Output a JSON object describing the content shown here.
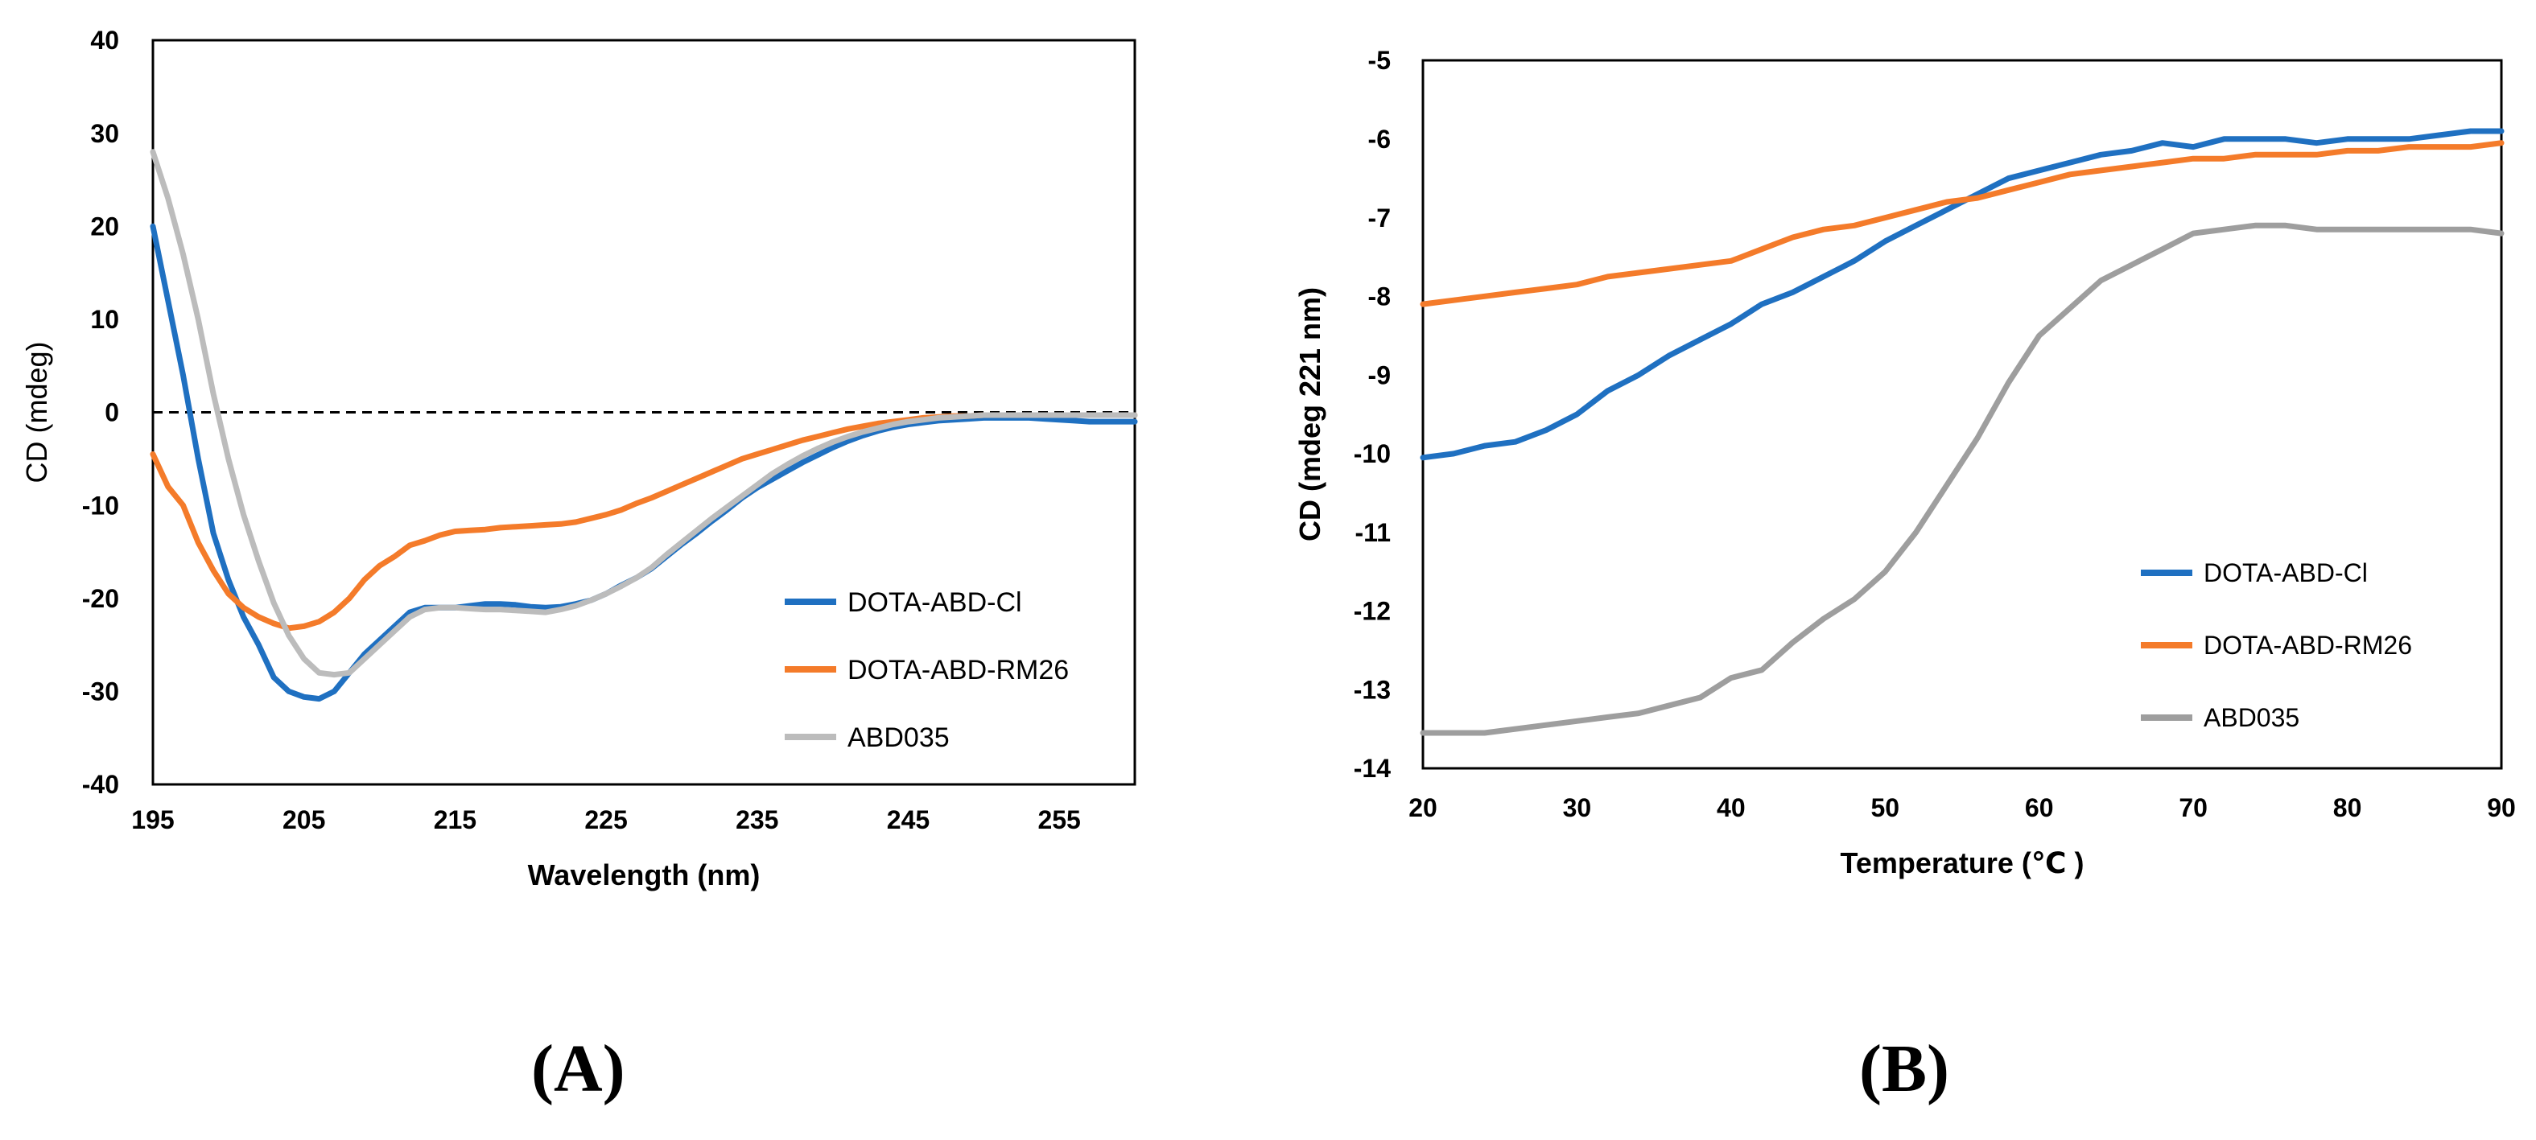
{
  "figure": {
    "panel_a_label": "(A)",
    "panel_b_label": "(B)"
  },
  "chart_data": [
    {
      "type": "line",
      "title": "",
      "xlabel": "Wavelength (nm)",
      "ylabel": "CD (mdeg)",
      "xlim": [
        195,
        260
      ],
      "ylim": [
        -40,
        40
      ],
      "xticks": [
        195,
        205,
        215,
        225,
        235,
        245,
        255
      ],
      "yticks": [
        -40,
        -30,
        -20,
        -10,
        0,
        10,
        20,
        30,
        40
      ],
      "grid": false,
      "zero_line": "dashed",
      "legend": "center-right",
      "series": [
        {
          "name": "DOTA-ABD-Cl",
          "color": "#1f70c1",
          "x": [
            195,
            196,
            197,
            198,
            199,
            200,
            201,
            202,
            203,
            204,
            205,
            206,
            207,
            208,
            209,
            210,
            211,
            212,
            213,
            214,
            215,
            216,
            217,
            218,
            219,
            220,
            221,
            222,
            223,
            224,
            225,
            226,
            227,
            228,
            229,
            230,
            231,
            232,
            233,
            234,
            235,
            236,
            237,
            238,
            239,
            240,
            241,
            242,
            243,
            244,
            245,
            246,
            247,
            248,
            249,
            250,
            251,
            252,
            253,
            254,
            255,
            256,
            257,
            258,
            259,
            260
          ],
          "y": [
            20,
            12,
            4,
            -5,
            -13,
            -18,
            -22,
            -25,
            -28.5,
            -30,
            -30.6,
            -30.8,
            -30,
            -28,
            -26,
            -24.5,
            -23,
            -21.5,
            -21,
            -21,
            -21,
            -20.8,
            -20.6,
            -20.6,
            -20.7,
            -20.9,
            -21,
            -20.9,
            -20.6,
            -20.2,
            -19.5,
            -18.6,
            -17.8,
            -16.8,
            -15.5,
            -14.2,
            -13,
            -11.7,
            -10.5,
            -9.2,
            -8.1,
            -7.2,
            -6.3,
            -5.4,
            -4.6,
            -3.8,
            -3.1,
            -2.5,
            -2,
            -1.6,
            -1.3,
            -1.1,
            -0.9,
            -0.8,
            -0.7,
            -0.6,
            -0.6,
            -0.6,
            -0.6,
            -0.7,
            -0.8,
            -0.9,
            -1,
            -1,
            -1,
            -1
          ]
        },
        {
          "name": "DOTA-ABD-RM26",
          "color": "#f47b2a",
          "x": [
            195,
            196,
            197,
            198,
            199,
            200,
            201,
            202,
            203,
            204,
            205,
            206,
            207,
            208,
            209,
            210,
            211,
            212,
            213,
            214,
            215,
            216,
            217,
            218,
            219,
            220,
            221,
            222,
            223,
            224,
            225,
            226,
            227,
            228,
            229,
            230,
            231,
            232,
            233,
            234,
            235,
            236,
            237,
            238,
            239,
            240,
            241,
            242,
            243,
            244,
            245,
            246,
            247,
            248,
            249,
            250,
            251,
            252,
            253,
            254,
            255,
            256,
            257,
            258,
            259,
            260
          ],
          "y": [
            -4.5,
            -8,
            -10,
            -14,
            -17,
            -19.5,
            -21,
            -22,
            -22.7,
            -23.2,
            -23,
            -22.5,
            -21.5,
            -20,
            -18,
            -16.5,
            -15.5,
            -14.3,
            -13.8,
            -13.2,
            -12.8,
            -12.7,
            -12.6,
            -12.4,
            -12.3,
            -12.2,
            -12.1,
            -12,
            -11.8,
            -11.4,
            -11,
            -10.5,
            -9.8,
            -9.2,
            -8.5,
            -7.8,
            -7.1,
            -6.4,
            -5.7,
            -5,
            -4.5,
            -4,
            -3.5,
            -3,
            -2.6,
            -2.2,
            -1.8,
            -1.5,
            -1.2,
            -1,
            -0.8,
            -0.6,
            -0.5,
            -0.4,
            -0.4,
            -0.3,
            -0.3,
            -0.3,
            -0.3,
            -0.3,
            -0.3,
            -0.3,
            -0.3,
            -0.3,
            -0.3,
            -0.3
          ]
        },
        {
          "name": "ABD035",
          "color": "#bcbcbc",
          "x": [
            195,
            196,
            197,
            198,
            199,
            200,
            201,
            202,
            203,
            204,
            205,
            206,
            207,
            208,
            209,
            210,
            211,
            212,
            213,
            214,
            215,
            216,
            217,
            218,
            219,
            220,
            221,
            222,
            223,
            224,
            225,
            226,
            227,
            228,
            229,
            230,
            231,
            232,
            233,
            234,
            235,
            236,
            237,
            238,
            239,
            240,
            241,
            242,
            243,
            244,
            245,
            246,
            247,
            248,
            249,
            250,
            251,
            252,
            253,
            254,
            255,
            256,
            257,
            258,
            259,
            260
          ],
          "y": [
            28,
            23,
            17,
            10,
            2,
            -5,
            -11,
            -16,
            -20.5,
            -24,
            -26.5,
            -28,
            -28.2,
            -28,
            -26.5,
            -25,
            -23.5,
            -22,
            -21.2,
            -21,
            -21,
            -21.1,
            -21.2,
            -21.2,
            -21.3,
            -21.4,
            -21.5,
            -21.2,
            -20.8,
            -20.2,
            -19.5,
            -18.7,
            -17.8,
            -16.7,
            -15.3,
            -14,
            -12.7,
            -11.4,
            -10.2,
            -9,
            -7.8,
            -6.6,
            -5.6,
            -4.7,
            -3.9,
            -3.2,
            -2.6,
            -2.1,
            -1.7,
            -1.3,
            -1,
            -0.8,
            -0.6,
            -0.5,
            -0.4,
            -0.3,
            -0.3,
            -0.3,
            -0.3,
            -0.3,
            -0.3,
            -0.3,
            -0.3,
            -0.3,
            -0.3,
            -0.3
          ]
        }
      ]
    },
    {
      "type": "line",
      "title": "",
      "xlabel": "Temperature (℃ )",
      "ylabel": "CD (mdeg 221 nm)",
      "xlim": [
        20,
        90
      ],
      "ylim": [
        -14,
        -5
      ],
      "xticks": [
        20,
        30,
        40,
        50,
        60,
        70,
        80,
        90
      ],
      "yticks": [
        -14,
        -13,
        -12,
        -11,
        -10,
        -9,
        -8,
        -7,
        -6,
        -5
      ],
      "grid": false,
      "legend": "center-right",
      "series": [
        {
          "name": "DOTA-ABD-Cl",
          "color": "#1f70c1",
          "x": [
            20,
            22,
            24,
            26,
            28,
            30,
            32,
            34,
            36,
            38,
            40,
            42,
            44,
            46,
            48,
            50,
            52,
            54,
            56,
            58,
            60,
            62,
            64,
            66,
            68,
            70,
            72,
            74,
            76,
            78,
            80,
            82,
            84,
            86,
            88,
            90
          ],
          "y": [
            -10.05,
            -10,
            -9.9,
            -9.85,
            -9.7,
            -9.5,
            -9.2,
            -9,
            -8.75,
            -8.55,
            -8.35,
            -8.1,
            -7.95,
            -7.75,
            -7.55,
            -7.3,
            -7.1,
            -6.9,
            -6.7,
            -6.5,
            -6.4,
            -6.3,
            -6.2,
            -6.15,
            -6.05,
            -6.1,
            -6,
            -6,
            -6,
            -6.05,
            -6,
            -6,
            -6,
            -5.95,
            -5.9,
            -5.9
          ]
        },
        {
          "name": "DOTA-ABD-RM26",
          "color": "#f47b2a",
          "x": [
            20,
            22,
            24,
            26,
            28,
            30,
            32,
            34,
            36,
            38,
            40,
            42,
            44,
            46,
            48,
            50,
            52,
            54,
            56,
            58,
            60,
            62,
            64,
            66,
            68,
            70,
            72,
            74,
            76,
            78,
            80,
            82,
            84,
            86,
            88,
            90
          ],
          "y": [
            -8.1,
            -8.05,
            -8,
            -7.95,
            -7.9,
            -7.85,
            -7.75,
            -7.7,
            -7.65,
            -7.6,
            -7.55,
            -7.4,
            -7.25,
            -7.15,
            -7.1,
            -7,
            -6.9,
            -6.8,
            -6.75,
            -6.65,
            -6.55,
            -6.45,
            -6.4,
            -6.35,
            -6.3,
            -6.25,
            -6.25,
            -6.2,
            -6.2,
            -6.2,
            -6.15,
            -6.15,
            -6.1,
            -6.1,
            -6.1,
            -6.05
          ]
        },
        {
          "name": "ABD035",
          "color": "#9e9e9e",
          "x": [
            20,
            22,
            24,
            26,
            28,
            30,
            32,
            34,
            36,
            38,
            40,
            42,
            44,
            46,
            48,
            50,
            52,
            54,
            56,
            58,
            60,
            62,
            64,
            66,
            68,
            70,
            72,
            74,
            76,
            78,
            80,
            82,
            84,
            86,
            88,
            90
          ],
          "y": [
            -13.55,
            -13.55,
            -13.55,
            -13.5,
            -13.45,
            -13.4,
            -13.35,
            -13.3,
            -13.2,
            -13.1,
            -12.85,
            -12.75,
            -12.4,
            -12.1,
            -11.85,
            -11.5,
            -11,
            -10.4,
            -9.8,
            -9.1,
            -8.5,
            -8.15,
            -7.8,
            -7.6,
            -7.4,
            -7.2,
            -7.15,
            -7.1,
            -7.1,
            -7.15,
            -7.15,
            -7.15,
            -7.15,
            -7.15,
            -7.15,
            -7.2
          ]
        }
      ]
    }
  ]
}
